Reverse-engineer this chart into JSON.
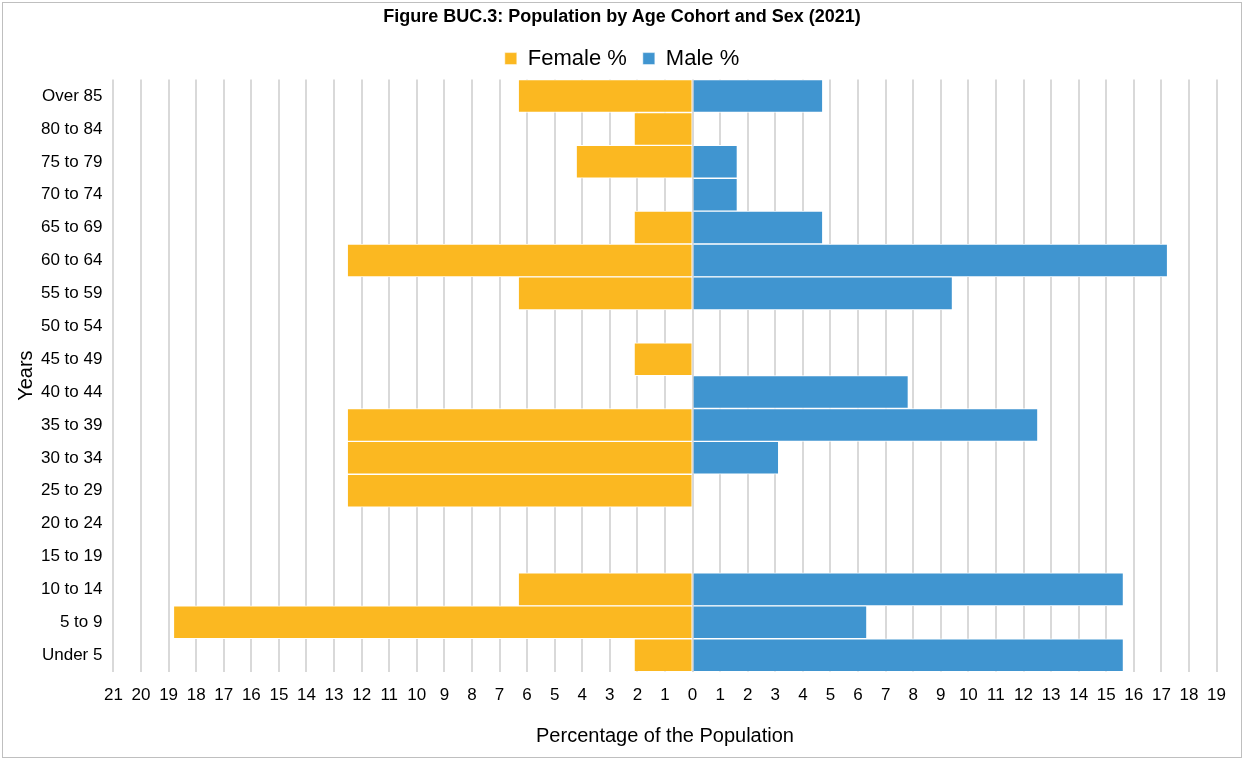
{
  "chart_data": {
    "type": "bar",
    "orientation": "horizontal",
    "stacked": true,
    "title": "Figure BUC.3: Population by Age Cohort and Sex (2021)",
    "xlabel": "Percentage of the Population",
    "ylabel": "Years",
    "legend": "top",
    "grid": "x",
    "categories": [
      "Over 85",
      "80 to 84",
      "75 to 79",
      "70 to 74",
      "65 to 69",
      "60 to 64",
      "55 to 59",
      "50 to 54",
      "45 to 49",
      "40 to 44",
      "35 to 39",
      "30 to 34",
      "25 to 29",
      "20 to 24",
      "15 to 19",
      "10 to 14",
      "5 to 9",
      "Under 5"
    ],
    "series": [
      {
        "name": "Female %",
        "color": "#fbb821",
        "values": [
          -6.3,
          -2.1,
          -4.2,
          null,
          -2.1,
          -12.5,
          -6.3,
          null,
          -2.1,
          null,
          -12.5,
          -12.5,
          -12.5,
          null,
          null,
          -6.3,
          -18.8,
          -2.1
        ]
      },
      {
        "name": "Male %",
        "color": "#4095d0",
        "values": [
          4.7,
          null,
          1.6,
          1.6,
          4.7,
          17.2,
          9.4,
          null,
          null,
          7.8,
          12.5,
          3.1,
          null,
          null,
          null,
          15.6,
          6.3,
          15.6
        ]
      }
    ],
    "xlim": [
      -21,
      19
    ],
    "xticks": [
      {
        "value": -21,
        "label": "21"
      },
      {
        "value": -20,
        "label": "20"
      },
      {
        "value": -19,
        "label": "19"
      },
      {
        "value": -18,
        "label": "18"
      },
      {
        "value": -17,
        "label": "17"
      },
      {
        "value": -16,
        "label": "16"
      },
      {
        "value": -15,
        "label": "15"
      },
      {
        "value": -14,
        "label": "14"
      },
      {
        "value": -13,
        "label": "13"
      },
      {
        "value": -12,
        "label": "12"
      },
      {
        "value": -11,
        "label": "11"
      },
      {
        "value": -10,
        "label": "10"
      },
      {
        "value": -9,
        "label": "9"
      },
      {
        "value": -8,
        "label": "8"
      },
      {
        "value": -7,
        "label": "7"
      },
      {
        "value": -6,
        "label": "6"
      },
      {
        "value": -5,
        "label": "5"
      },
      {
        "value": -4,
        "label": "4"
      },
      {
        "value": -3,
        "label": "3"
      },
      {
        "value": -2,
        "label": "2"
      },
      {
        "value": -1,
        "label": "1"
      },
      0,
      1,
      2,
      3,
      4,
      5,
      6,
      7,
      8,
      9,
      10,
      11,
      12,
      13,
      14,
      15,
      16,
      17,
      18,
      19
    ]
  }
}
